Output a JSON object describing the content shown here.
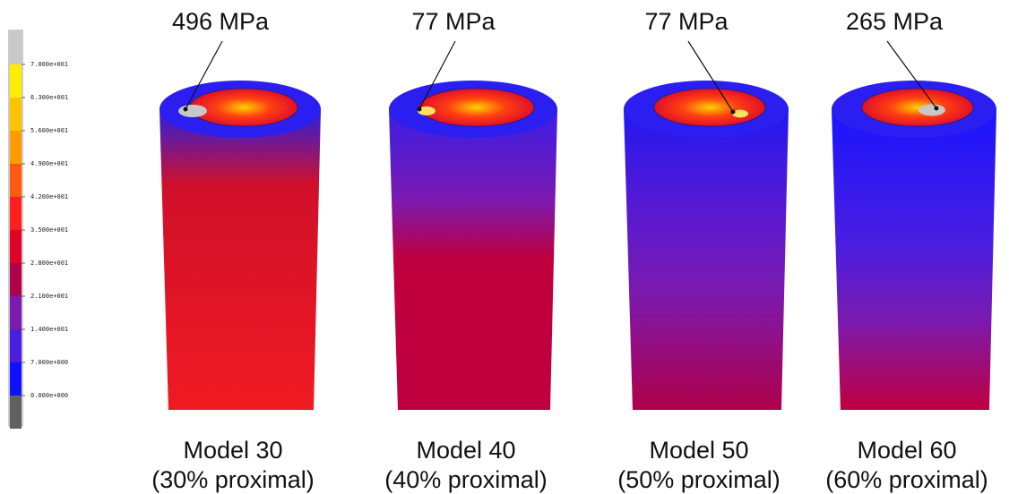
{
  "legend": {
    "labels": [
      "7.000e+001",
      "6.300e+001",
      "5.600e+001",
      "4.900e+001",
      "4.200e+001",
      "3.500e+001",
      "2.800e+001",
      "2.100e+001",
      "1.400e+001",
      "7.000e+000",
      "0.000e+000"
    ],
    "colors": [
      "#c8c8c8",
      "#ffee00",
      "#ffc400",
      "#ff9a00",
      "#ff5a10",
      "#ff1e1e",
      "#e0002a",
      "#b0004a",
      "#7a1ab0",
      "#4a1ee0",
      "#1010ff",
      "#606060"
    ]
  },
  "models": [
    {
      "stress": "496 MPa",
      "name": "Model 30",
      "caption": "(30% proximal)"
    },
    {
      "stress": "77 MPa",
      "name": "Model 40",
      "caption": "(40% proximal)"
    },
    {
      "stress": "77 MPa",
      "name": "Model 50",
      "caption": "(50% proximal)"
    },
    {
      "stress": "265 MPa",
      "name": "Model 60",
      "caption": "(60% proximal)"
    }
  ]
}
